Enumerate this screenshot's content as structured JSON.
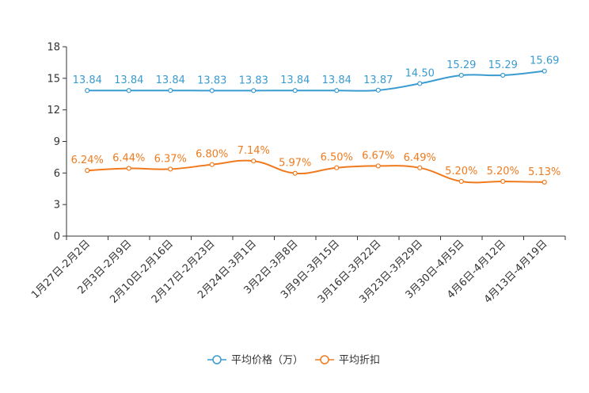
{
  "chart_data": {
    "type": "line",
    "title": "",
    "xlabel": "",
    "ylabel": "",
    "ylim": [
      0,
      18
    ],
    "yticks": [
      0,
      3,
      6,
      9,
      12,
      15,
      18
    ],
    "grid": false,
    "legend_position": "bottom",
    "categories": [
      "1月27日-2月2日",
      "2月3日-2月9日",
      "2月10日-2月16日",
      "2月17日-2月23日",
      "2月24日-3月1日",
      "3月2日-3月8日",
      "3月9日-3月15日",
      "3月16日-3月22日",
      "3月23日-3月29日",
      "3月30日-4月5日",
      "4月6日-4月12日",
      "4月13日-4月19日"
    ],
    "series": [
      {
        "name": "平均价格（万）",
        "color": "#3a9bd0",
        "values": [
          13.84,
          13.84,
          13.84,
          13.83,
          13.83,
          13.84,
          13.84,
          13.87,
          14.5,
          15.29,
          15.29,
          15.69
        ],
        "labels": [
          "13.84",
          "13.84",
          "13.84",
          "13.83",
          "13.83",
          "13.84",
          "13.84",
          "13.87",
          "14.50",
          "15.29",
          "15.29",
          "15.69"
        ]
      },
      {
        "name": "平均折扣",
        "color": "#f07b1f",
        "values": [
          6.24,
          6.44,
          6.37,
          6.8,
          7.14,
          5.97,
          6.5,
          6.67,
          6.49,
          5.2,
          5.2,
          5.13
        ],
        "labels": [
          "6.24%",
          "6.44%",
          "6.37%",
          "6.80%",
          "7.14%",
          "5.97%",
          "6.50%",
          "6.67%",
          "6.49%",
          "5.20%",
          "5.20%",
          "5.13%"
        ]
      }
    ]
  }
}
